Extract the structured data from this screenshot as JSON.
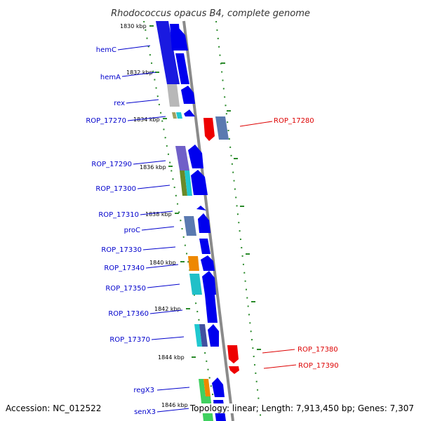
{
  "title": "Rhodococcus opacus B4, complete genome",
  "footer": {
    "accession": "Accession: NC_012522",
    "summary": "Topology: linear; Length: 7,913,450 bp; Genes: 7,307"
  },
  "colors": {
    "minus_strand_label": "#0000cc",
    "plus_strand_label": "#dd0000",
    "backbone": "#8a8a8a",
    "ruler_tick": "#2a8a2a"
  },
  "ruler": [
    "1830 kbp",
    "1832 kbp",
    "1834 kbp",
    "1836 kbp",
    "1838 kbp",
    "1840 kbp",
    "1842 kbp",
    "1844 kbp",
    "1846 kbp"
  ],
  "genes_left": [
    "hemC",
    "hemA",
    "rex",
    "ROP_17270",
    "ROP_17290",
    "ROP_17300",
    "ROP_17310",
    "proC",
    "ROP_17330",
    "ROP_17340",
    "ROP_17350",
    "ROP_17360",
    "ROP_17370",
    "regX3",
    "senX3"
  ],
  "genes_right": [
    "ROP_17280",
    "ROP_17380",
    "ROP_17390"
  ]
}
